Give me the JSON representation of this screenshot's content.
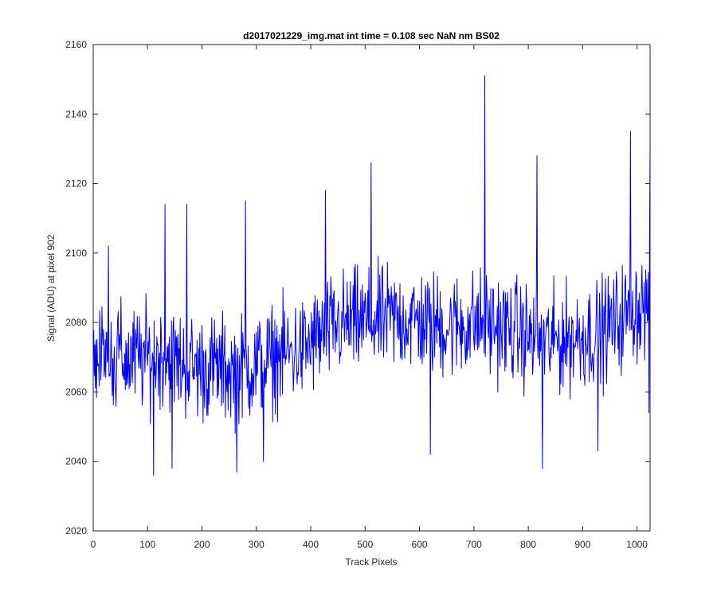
{
  "chart_data": {
    "type": "line",
    "title": "d2017021229_img.mat int time = 0.108 sec  NaN nm BS02",
    "xlabel": "Track Pixels",
    "ylabel": "Signal (ADU) at pixel 902",
    "xlim": [
      0,
      1024
    ],
    "ylim": [
      2020,
      2160
    ],
    "xticks": [
      0,
      100,
      200,
      300,
      400,
      500,
      600,
      700,
      800,
      900,
      1000
    ],
    "yticks": [
      2020,
      2040,
      2060,
      2080,
      2100,
      2120,
      2140,
      2160
    ],
    "grid": false,
    "series": [
      {
        "color": "#0000ff",
        "x": [
          1,
          33,
          65,
          97,
          129,
          161,
          193,
          225,
          257,
          289,
          321,
          353,
          385,
          417,
          449,
          481,
          513,
          545,
          577,
          609,
          641,
          673,
          705,
          737,
          769,
          801,
          833,
          865,
          897,
          929,
          961,
          993,
          1024
        ],
        "y": [
          2072,
          2071,
          2069,
          2070,
          2071,
          2068,
          2067,
          2067,
          2066,
          2067,
          2069,
          2071,
          2072,
          2076,
          2079,
          2080,
          2080,
          2081,
          2081,
          2080,
          2079,
          2079,
          2080,
          2079,
          2078,
          2076,
          2074,
          2075,
          2076,
          2077,
          2080,
          2084,
          2085
        ],
        "noise_amplitude": 14,
        "outliers": [
          {
            "x": 28,
            "y": 2102
          },
          {
            "x": 111,
            "y": 2036
          },
          {
            "x": 132,
            "y": 2114
          },
          {
            "x": 145,
            "y": 2038
          },
          {
            "x": 172,
            "y": 2114
          },
          {
            "x": 264,
            "y": 2037
          },
          {
            "x": 280,
            "y": 2115
          },
          {
            "x": 313,
            "y": 2040
          },
          {
            "x": 427,
            "y": 2118
          },
          {
            "x": 511,
            "y": 2126
          },
          {
            "x": 620,
            "y": 2042
          },
          {
            "x": 720,
            "y": 2151
          },
          {
            "x": 816,
            "y": 2128
          },
          {
            "x": 826,
            "y": 2038
          },
          {
            "x": 928,
            "y": 2043
          },
          {
            "x": 988,
            "y": 2135
          },
          {
            "x": 1022,
            "y": 2054
          },
          {
            "x": 1024,
            "y": 2130
          }
        ]
      }
    ]
  }
}
